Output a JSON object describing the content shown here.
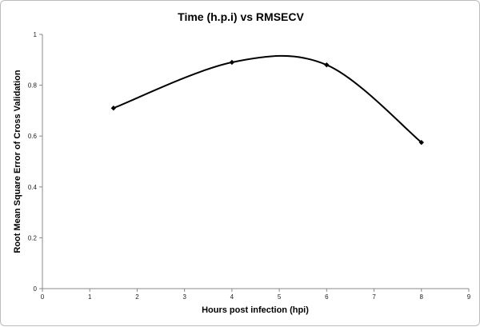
{
  "chart_data": {
    "type": "line",
    "title": "Time (h.p.i) vs RMSECV",
    "xlabel": "Hours post infection (hpi)",
    "ylabel": "Root Mean Square Error of Cross Validation",
    "xlim": [
      0,
      9
    ],
    "ylim": [
      0,
      1
    ],
    "x_ticks": [
      "0",
      "1",
      "2",
      "3",
      "4",
      "5",
      "6",
      "7",
      "8",
      "9"
    ],
    "y_ticks": [
      "0",
      "0.2",
      "0.4",
      "0.6",
      "0.8",
      "1"
    ],
    "smoothed": true,
    "marker": "diamond",
    "line_color": "#000000",
    "grid": false,
    "legend": "none",
    "series": [
      {
        "x": [
          1.5,
          4,
          6,
          8
        ],
        "y": [
          0.71,
          0.89,
          0.88,
          0.575
        ]
      }
    ]
  }
}
